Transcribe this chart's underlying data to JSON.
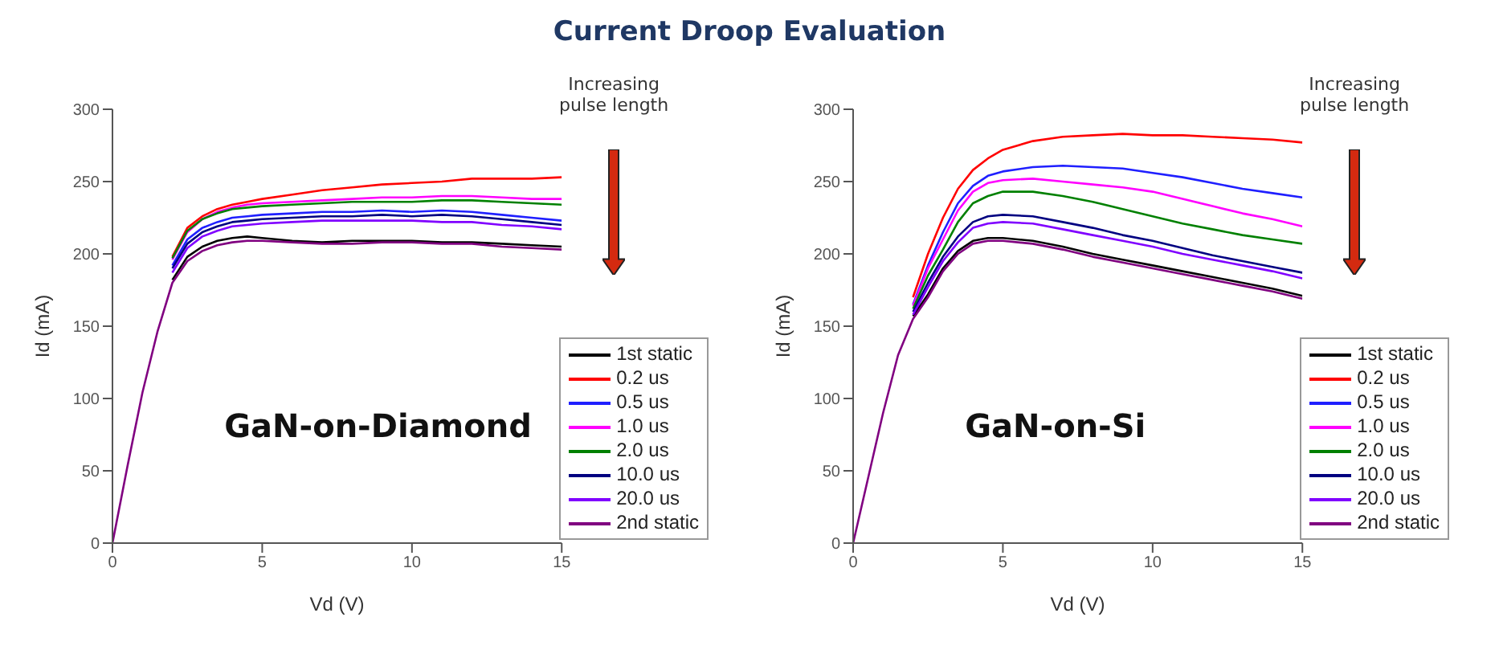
{
  "chart_data": [
    {
      "type": "line",
      "title": "Current Droop Evaluation",
      "xlabel": "Vd (V)",
      "ylabel": "Id (mA)",
      "annotations": [
        "GaN-on-Diamond",
        "Increasing pulse length"
      ],
      "xlim": [
        0,
        15
      ],
      "xticks": [
        0,
        5,
        10,
        15
      ],
      "ylim": [
        0,
        300
      ],
      "yticks": [
        0,
        50,
        100,
        150,
        200,
        250,
        300
      ],
      "grid": false,
      "legend": "bottom right",
      "marker": "none",
      "line_style": "solid",
      "x": [
        0,
        0.5,
        1,
        1.5,
        2,
        2.5,
        3,
        3.5,
        4,
        4.5,
        5,
        6,
        7,
        8,
        9,
        10,
        11,
        12,
        13,
        14,
        15
      ],
      "series": [
        {
          "name": "1st static",
          "color": "#000000",
          "values": [
            null,
            null,
            null,
            null,
            182,
            198,
            205,
            209,
            211,
            212,
            211,
            209,
            208,
            209,
            209,
            209,
            208,
            208,
            207,
            206,
            205
          ]
        },
        {
          "name": "0.2 us",
          "color": "#ff0000",
          "values": [
            null,
            null,
            null,
            null,
            198,
            218,
            226,
            231,
            234,
            236,
            238,
            241,
            244,
            246,
            248,
            249,
            250,
            252,
            252,
            252,
            253
          ]
        },
        {
          "name": "0.5 us",
          "color": "#1f1fff",
          "values": [
            null,
            null,
            null,
            null,
            192,
            210,
            218,
            222,
            225,
            226,
            227,
            228,
            229,
            229,
            230,
            229,
            230,
            229,
            227,
            225,
            223
          ]
        },
        {
          "name": "1.0 us",
          "color": "#ff00ff",
          "values": [
            null,
            null,
            null,
            null,
            196,
            215,
            224,
            229,
            232,
            234,
            235,
            236,
            237,
            238,
            239,
            239,
            240,
            240,
            239,
            238,
            238
          ]
        },
        {
          "name": "2.0 us",
          "color": "#008000",
          "values": [
            null,
            null,
            null,
            null,
            197,
            216,
            224,
            228,
            231,
            232,
            233,
            234,
            235,
            236,
            236,
            236,
            237,
            237,
            236,
            235,
            234
          ]
        },
        {
          "name": "10.0 us",
          "color": "#000080",
          "values": [
            null,
            null,
            null,
            null,
            190,
            207,
            215,
            219,
            222,
            223,
            224,
            225,
            226,
            226,
            227,
            226,
            227,
            226,
            224,
            222,
            220
          ]
        },
        {
          "name": "20.0 us",
          "color": "#8000ff",
          "values": [
            null,
            null,
            null,
            null,
            187,
            204,
            212,
            216,
            219,
            220,
            221,
            222,
            223,
            223,
            223,
            223,
            222,
            222,
            220,
            219,
            217
          ]
        },
        {
          "name": "2nd static",
          "color": "#800080",
          "values": [
            0,
            53,
            104,
            146,
            180,
            195,
            202,
            206,
            208,
            209,
            209,
            208,
            207,
            207,
            208,
            208,
            207,
            207,
            205,
            204,
            203
          ]
        }
      ]
    },
    {
      "type": "line",
      "xlabel": "Vd (V)",
      "ylabel": "Id (mA)",
      "annotations": [
        "GaN-on-Si",
        "Increasing pulse length"
      ],
      "xlim": [
        0,
        15
      ],
      "xticks": [
        0,
        5,
        10,
        15
      ],
      "ylim": [
        0,
        300
      ],
      "yticks": [
        0,
        50,
        100,
        150,
        200,
        250,
        300
      ],
      "grid": false,
      "legend": "bottom right",
      "marker": "none",
      "line_style": "solid",
      "x": [
        0,
        0.5,
        1,
        1.5,
        2,
        2.5,
        3,
        3.5,
        4,
        4.5,
        5,
        6,
        7,
        8,
        9,
        10,
        11,
        12,
        13,
        14,
        15
      ],
      "series": [
        {
          "name": "1st static",
          "color": "#000000",
          "values": [
            null,
            null,
            null,
            null,
            157,
            172,
            190,
            202,
            209,
            211,
            211,
            209,
            205,
            200,
            196,
            192,
            188,
            184,
            180,
            176,
            171
          ]
        },
        {
          "name": "0.2 us",
          "color": "#ff0000",
          "values": [
            null,
            null,
            null,
            null,
            170,
            200,
            225,
            245,
            258,
            266,
            272,
            278,
            281,
            282,
            283,
            282,
            282,
            281,
            280,
            279,
            277
          ]
        },
        {
          "name": "0.5 us",
          "color": "#1f1fff",
          "values": [
            null,
            null,
            null,
            null,
            165,
            192,
            215,
            235,
            247,
            254,
            257,
            260,
            261,
            260,
            259,
            256,
            253,
            249,
            245,
            242,
            239
          ]
        },
        {
          "name": "1.0 us",
          "color": "#ff00ff",
          "values": [
            null,
            null,
            null,
            null,
            164,
            190,
            210,
            230,
            243,
            249,
            251,
            252,
            250,
            248,
            246,
            243,
            238,
            233,
            228,
            224,
            219
          ]
        },
        {
          "name": "2.0 us",
          "color": "#008000",
          "values": [
            null,
            null,
            null,
            null,
            162,
            185,
            203,
            222,
            235,
            240,
            243,
            243,
            240,
            236,
            231,
            226,
            221,
            217,
            213,
            210,
            207
          ]
        },
        {
          "name": "10.0 us",
          "color": "#000080",
          "values": [
            null,
            null,
            null,
            null,
            160,
            180,
            198,
            212,
            222,
            226,
            227,
            226,
            222,
            218,
            213,
            209,
            204,
            199,
            195,
            191,
            187
          ]
        },
        {
          "name": "20.0 us",
          "color": "#8000ff",
          "values": [
            null,
            null,
            null,
            null,
            158,
            177,
            195,
            208,
            218,
            221,
            222,
            221,
            217,
            213,
            209,
            205,
            200,
            196,
            192,
            188,
            183
          ]
        },
        {
          "name": "2nd static",
          "color": "#800080",
          "values": [
            0,
            45,
            90,
            130,
            155,
            170,
            188,
            200,
            207,
            209,
            209,
            207,
            203,
            198,
            194,
            190,
            186,
            182,
            178,
            174,
            169
          ]
        }
      ]
    }
  ]
}
